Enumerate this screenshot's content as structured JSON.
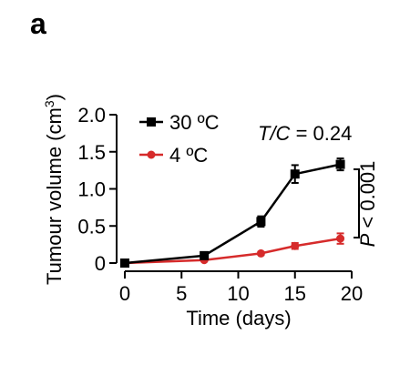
{
  "panel_label": "a",
  "chart_data": {
    "type": "line",
    "xlabel": "Time (days)",
    "ylabel_main": "Tumour volume (cm",
    "ylabel_sup": "3",
    "ylabel_close": ")",
    "xlim": [
      0,
      20
    ],
    "ylim": [
      0,
      2.0
    ],
    "x_ticks": [
      0,
      5,
      10,
      15,
      20
    ],
    "x_tick_labels": [
      "0",
      "5",
      "10",
      "15",
      "20"
    ],
    "y_ticks": [
      0,
      0.5,
      1.0,
      1.5,
      2.0
    ],
    "y_tick_labels": [
      "0",
      "0.5",
      "1.0",
      "1.5",
      "2.0"
    ],
    "grid": false,
    "legend_position": "top-left",
    "series": [
      {
        "name": "30 ºC",
        "color": "#000000",
        "marker": "square",
        "x": [
          0,
          7,
          12,
          15,
          19
        ],
        "y": [
          0,
          0.1,
          0.56,
          1.2,
          1.33
        ],
        "err": [
          0,
          0.03,
          0.07,
          0.12,
          0.08
        ]
      },
      {
        "name": "4 ºC",
        "color": "#d62b2b",
        "marker": "circle",
        "x": [
          0,
          7,
          12,
          15,
          19
        ],
        "y": [
          0,
          0.04,
          0.13,
          0.23,
          0.33
        ],
        "err": [
          0,
          0.01,
          0.02,
          0.04,
          0.07
        ]
      }
    ],
    "annotations": {
      "ratio_italic": "T/C",
      "ratio_value": " = 0.24",
      "pvalue_italic": "P",
      "pvalue_value": " < 0.001"
    }
  }
}
